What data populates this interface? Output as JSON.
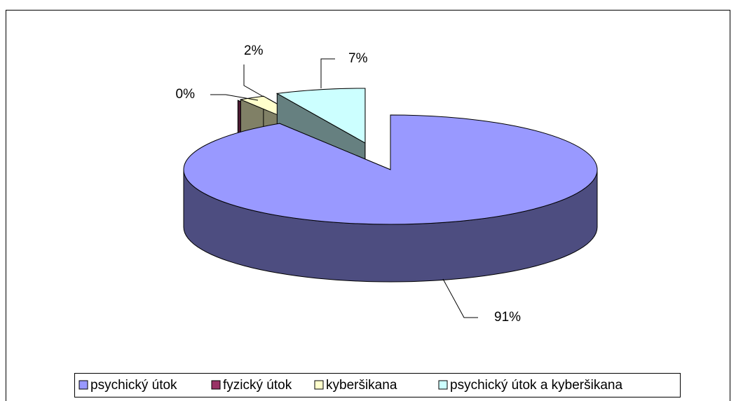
{
  "chart_data": {
    "type": "pie",
    "categories": [
      "psychický útok",
      "fyzický útok",
      "kyberšikana",
      "psychický útok a kyberšikana"
    ],
    "values": [
      91,
      0,
      2,
      7
    ],
    "value_labels": [
      "91%",
      "0%",
      "2%",
      "7%"
    ],
    "colors": [
      "#9999ff",
      "#993366",
      "#ffffcc",
      "#ccffff"
    ],
    "legend": "bottom"
  }
}
